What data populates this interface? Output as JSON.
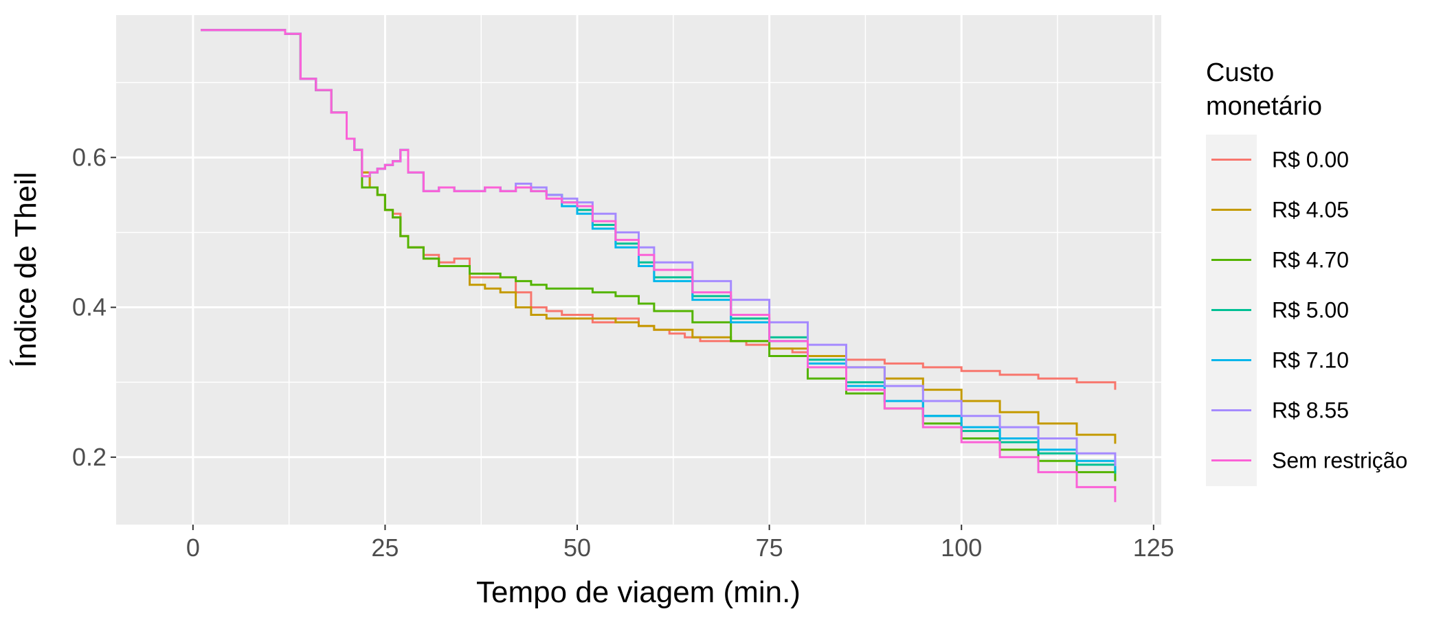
{
  "chart_data": {
    "type": "line",
    "xlabel": "Tempo de viagem (min.)",
    "ylabel": "Índice de Theil",
    "xlim": [
      -10,
      126
    ],
    "ylim": [
      0.11,
      0.79
    ],
    "x_ticks": [
      0,
      25,
      50,
      75,
      100,
      125
    ],
    "y_ticks": [
      0.2,
      0.4,
      0.6
    ],
    "x_tick_labels": [
      "0",
      "25",
      "50",
      "75",
      "100",
      "125"
    ],
    "y_tick_labels": [
      "0.2",
      "0.4",
      "0.6"
    ],
    "grid": true,
    "step": true,
    "legend": {
      "title_lines": [
        "Custo",
        "monetário"
      ],
      "position": "right"
    },
    "series": [
      {
        "name": "R$ 0.00",
        "color": "#F8766D",
        "x": [
          1,
          10,
          12,
          14,
          16,
          18,
          19,
          20,
          21,
          22,
          23,
          24,
          25,
          26,
          27,
          28,
          30,
          32,
          34,
          36,
          38,
          40,
          42,
          44,
          46,
          48,
          50,
          52,
          55,
          58,
          60,
          62,
          64,
          66,
          68,
          70,
          72,
          75,
          78,
          80,
          85,
          90,
          95,
          100,
          105,
          110,
          115,
          120
        ],
        "values": [
          0.77,
          0.77,
          0.765,
          0.705,
          0.69,
          0.66,
          0.66,
          0.625,
          0.61,
          0.58,
          0.56,
          0.55,
          0.53,
          0.525,
          0.495,
          0.48,
          0.47,
          0.46,
          0.465,
          0.44,
          0.44,
          0.44,
          0.42,
          0.4,
          0.395,
          0.39,
          0.39,
          0.38,
          0.385,
          0.375,
          0.37,
          0.365,
          0.36,
          0.355,
          0.355,
          0.355,
          0.35,
          0.345,
          0.34,
          0.335,
          0.33,
          0.325,
          0.32,
          0.315,
          0.31,
          0.305,
          0.3,
          0.29
        ]
      },
      {
        "name": "R$ 4.05",
        "color": "#C49A00",
        "x": [
          1,
          10,
          12,
          14,
          16,
          18,
          19,
          20,
          21,
          22,
          23,
          24,
          25,
          26,
          27,
          28,
          30,
          32,
          34,
          36,
          38,
          40,
          42,
          44,
          46,
          48,
          50,
          52,
          55,
          58,
          60,
          65,
          70,
          75,
          80,
          85,
          90,
          95,
          100,
          105,
          110,
          115,
          120
        ],
        "values": [
          0.77,
          0.77,
          0.765,
          0.705,
          0.69,
          0.66,
          0.66,
          0.625,
          0.61,
          0.58,
          0.56,
          0.55,
          0.53,
          0.52,
          0.495,
          0.48,
          0.465,
          0.455,
          0.455,
          0.43,
          0.425,
          0.42,
          0.4,
          0.39,
          0.385,
          0.385,
          0.385,
          0.385,
          0.38,
          0.375,
          0.37,
          0.36,
          0.355,
          0.345,
          0.335,
          0.32,
          0.305,
          0.29,
          0.275,
          0.26,
          0.245,
          0.23,
          0.218
        ]
      },
      {
        "name": "R$ 4.70",
        "color": "#53B400",
        "x": [
          1,
          10,
          12,
          14,
          16,
          18,
          19,
          20,
          21,
          22,
          23,
          24,
          25,
          26,
          27,
          28,
          30,
          32,
          34,
          36,
          38,
          40,
          42,
          44,
          46,
          48,
          50,
          52,
          55,
          58,
          60,
          65,
          70,
          75,
          80,
          85,
          90,
          95,
          100,
          105,
          110,
          115,
          120
        ],
        "values": [
          0.77,
          0.77,
          0.765,
          0.705,
          0.69,
          0.66,
          0.66,
          0.625,
          0.61,
          0.56,
          0.56,
          0.55,
          0.53,
          0.52,
          0.495,
          0.48,
          0.465,
          0.455,
          0.455,
          0.445,
          0.445,
          0.44,
          0.435,
          0.43,
          0.425,
          0.425,
          0.425,
          0.42,
          0.415,
          0.405,
          0.395,
          0.38,
          0.355,
          0.335,
          0.305,
          0.285,
          0.265,
          0.245,
          0.225,
          0.21,
          0.195,
          0.18,
          0.168
        ]
      },
      {
        "name": "R$ 5.00",
        "color": "#00C094",
        "x": [
          1,
          10,
          12,
          14,
          16,
          18,
          19,
          20,
          21,
          22,
          23,
          24,
          25,
          26,
          27,
          28,
          30,
          32,
          34,
          36,
          38,
          40,
          42,
          44,
          46,
          48,
          50,
          52,
          55,
          58,
          60,
          65,
          70,
          75,
          80,
          85,
          90,
          95,
          100,
          105,
          110,
          115,
          120
        ],
        "values": [
          0.77,
          0.77,
          0.765,
          0.705,
          0.69,
          0.66,
          0.66,
          0.625,
          0.61,
          0.575,
          0.58,
          0.585,
          0.59,
          0.595,
          0.61,
          0.58,
          0.555,
          0.56,
          0.555,
          0.555,
          0.56,
          0.555,
          0.56,
          0.555,
          0.55,
          0.54,
          0.53,
          0.51,
          0.485,
          0.46,
          0.44,
          0.415,
          0.385,
          0.36,
          0.33,
          0.3,
          0.275,
          0.255,
          0.235,
          0.22,
          0.205,
          0.19,
          0.178
        ]
      },
      {
        "name": "R$ 7.10",
        "color": "#00B6EB",
        "x": [
          1,
          10,
          12,
          14,
          16,
          18,
          19,
          20,
          21,
          22,
          23,
          24,
          25,
          26,
          27,
          28,
          30,
          32,
          34,
          36,
          38,
          40,
          42,
          44,
          46,
          48,
          50,
          52,
          55,
          58,
          60,
          65,
          70,
          75,
          80,
          85,
          90,
          95,
          100,
          105,
          110,
          115,
          120
        ],
        "values": [
          0.77,
          0.77,
          0.765,
          0.705,
          0.69,
          0.66,
          0.66,
          0.625,
          0.61,
          0.575,
          0.58,
          0.585,
          0.59,
          0.595,
          0.61,
          0.58,
          0.555,
          0.56,
          0.555,
          0.555,
          0.56,
          0.555,
          0.56,
          0.555,
          0.55,
          0.535,
          0.525,
          0.505,
          0.48,
          0.455,
          0.435,
          0.41,
          0.38,
          0.355,
          0.325,
          0.295,
          0.275,
          0.255,
          0.24,
          0.225,
          0.21,
          0.195,
          0.182
        ]
      },
      {
        "name": "R$ 8.55",
        "color": "#A58AFF",
        "x": [
          1,
          10,
          12,
          14,
          16,
          18,
          19,
          20,
          21,
          22,
          23,
          24,
          25,
          26,
          27,
          28,
          30,
          32,
          34,
          36,
          38,
          40,
          42,
          44,
          46,
          48,
          50,
          52,
          55,
          58,
          60,
          65,
          70,
          75,
          80,
          85,
          90,
          95,
          100,
          105,
          110,
          115,
          120
        ],
        "values": [
          0.77,
          0.77,
          0.765,
          0.705,
          0.69,
          0.66,
          0.66,
          0.625,
          0.61,
          0.575,
          0.58,
          0.585,
          0.59,
          0.595,
          0.61,
          0.58,
          0.555,
          0.56,
          0.555,
          0.555,
          0.56,
          0.555,
          0.565,
          0.56,
          0.55,
          0.545,
          0.54,
          0.525,
          0.5,
          0.48,
          0.46,
          0.435,
          0.41,
          0.38,
          0.35,
          0.32,
          0.295,
          0.275,
          0.255,
          0.24,
          0.225,
          0.205,
          0.188
        ]
      },
      {
        "name": "Sem restrição",
        "color": "#FB61D7",
        "x": [
          1,
          10,
          12,
          14,
          16,
          18,
          19,
          20,
          21,
          22,
          23,
          24,
          25,
          26,
          27,
          28,
          30,
          32,
          34,
          36,
          38,
          40,
          42,
          44,
          46,
          48,
          50,
          52,
          55,
          58,
          60,
          65,
          70,
          75,
          80,
          85,
          90,
          95,
          100,
          105,
          110,
          115,
          120
        ],
        "values": [
          0.77,
          0.77,
          0.765,
          0.705,
          0.69,
          0.66,
          0.66,
          0.625,
          0.61,
          0.575,
          0.58,
          0.585,
          0.59,
          0.595,
          0.61,
          0.58,
          0.555,
          0.56,
          0.555,
          0.555,
          0.56,
          0.555,
          0.56,
          0.555,
          0.545,
          0.54,
          0.535,
          0.515,
          0.49,
          0.47,
          0.45,
          0.42,
          0.39,
          0.355,
          0.32,
          0.29,
          0.265,
          0.24,
          0.22,
          0.2,
          0.18,
          0.16,
          0.14
        ]
      }
    ]
  }
}
